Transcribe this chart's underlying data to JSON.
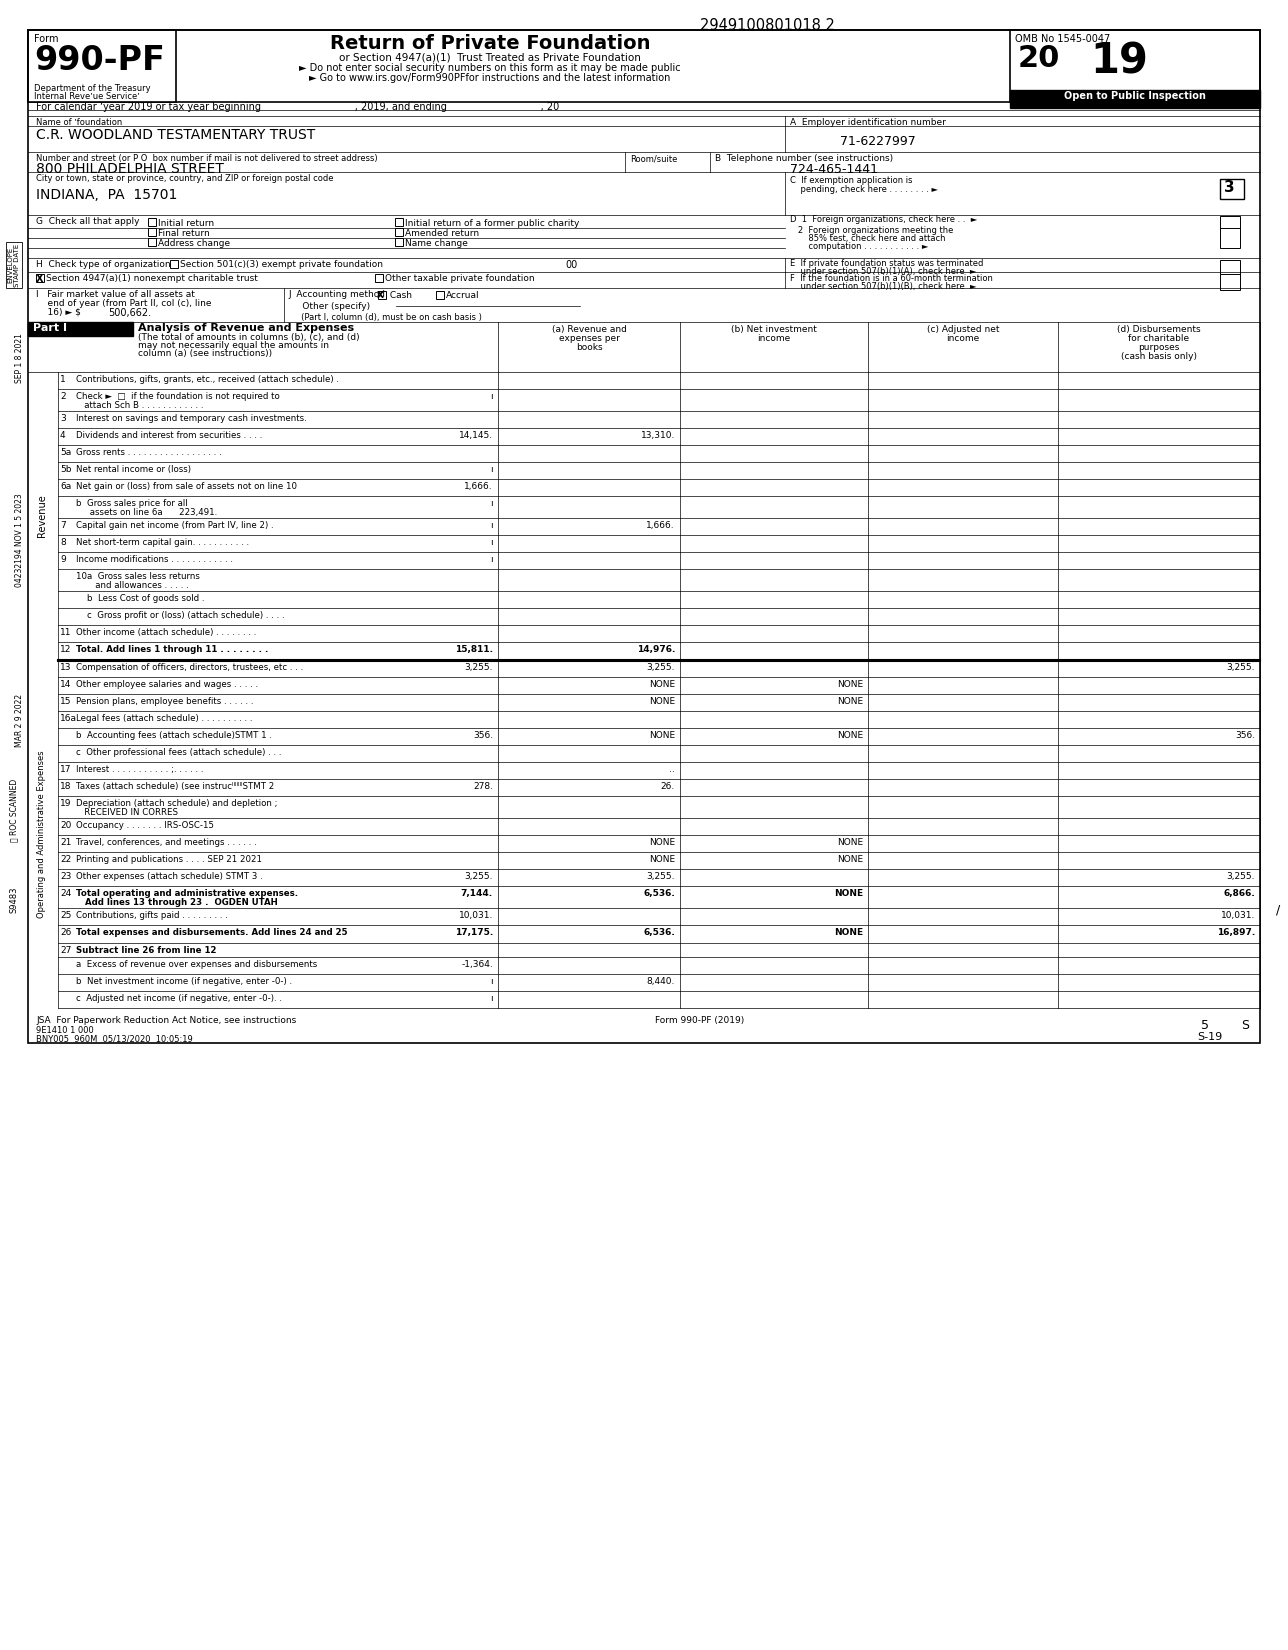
{
  "doc_number": "2949100801018 2",
  "form_title": "Return of Private Foundation",
  "form_subtitle1": "or Section 4947(a)(1)  Trust Treated as Private Foundation",
  "form_subtitle2": "► Do not enter social security numbers on this form as it may be made public",
  "form_subtitle3": "► Go to www.irs.gov/Form990PFfor instructions and the latest information",
  "dept_line1": "Department of the Treasury",
  "dept_line2": "Internal Reveʼue Serviceʼ",
  "omb_label": "OMB No 1545-0047",
  "open_label": "Open to Public Inspection",
  "calendar_line": "For calendar ʼyear 2019 or tax year beginning                              , 2019, and ending                              , 20",
  "name_label": "Name of ʼfoundation",
  "foundation_name": "C.R. WOODLAND TESTAMENTARY TRUST",
  "ein_label": "A  Employer identification number",
  "ein": "71-6227997",
  "address_label": "Number and street (or P O  box number if mail is not delivered to street address)",
  "room_label": "Room/suite",
  "phone_label": "B  Telephone number (see instructions)",
  "address": "800 PHILADELPHIA STREET",
  "phone": "724-465-1441",
  "city_label": "City or town, state or province, country, and ZIP or foreign postal code",
  "city": "INDIANA,  PA  15701",
  "c_box_val": "3",
  "h_option1": "Section 501(c)(3) exempt private foundation",
  "h_option2": "Section 4947(a)(1) nonexempt charitable trust",
  "h_option3": "Other taxable private foundation",
  "h_00": "00",
  "i_value": "500,662.",
  "footer_left": "JSA  For Paperwork Reduction Act Notice, see instructions",
  "footer_form": "Form 990-PF (2019)",
  "footer_code": "9E1410 1 000",
  "footer_bny": "BNY005  960M  05/13/2020  10:05:19",
  "footer_page": "5",
  "footer_s": "S",
  "footer_s19": "S-19",
  "stamp1": "SEP 1 8 2021",
  "stamp2": "04232194 NOV 1 5 2023",
  "stamp3": "MAR 2 9 2022",
  "bg_color": "#ffffff"
}
